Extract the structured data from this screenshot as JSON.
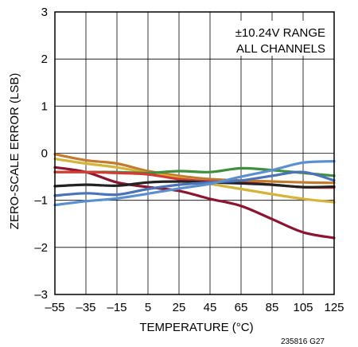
{
  "chart_data": {
    "type": "line",
    "title": "",
    "xlabel": "TEMPERATURE (°C)",
    "ylabel": "ZERO-SCALE ERROR (LSB)",
    "xlim": [
      -55,
      125
    ],
    "ylim": [
      -3,
      3
    ],
    "x_ticks": [
      -55,
      -35,
      -15,
      5,
      25,
      45,
      65,
      85,
      105,
      125
    ],
    "x_tick_labels": [
      "–55",
      "–35",
      "–15",
      "5",
      "25",
      "45",
      "65",
      "85",
      "105",
      "125"
    ],
    "y_ticks": [
      -3,
      -2,
      -1,
      0,
      1,
      2,
      3
    ],
    "y_tick_labels": [
      "–3",
      "–2",
      "–1",
      "0",
      "1",
      "2",
      "3"
    ],
    "grid": true,
    "annotation": [
      "±10.24V RANGE",
      "ALL CHANNELS"
    ],
    "figure_id": "235816 G27",
    "x": [
      -55,
      -35,
      -15,
      5,
      25,
      45,
      65,
      85,
      105,
      125
    ],
    "series": [
      {
        "color": "#c17a2e",
        "values": [
          -0.02,
          -0.15,
          -0.22,
          -0.38,
          -0.48,
          -0.55,
          -0.58,
          -0.6,
          -0.62,
          -0.63
        ]
      },
      {
        "color": "#d4b43a",
        "values": [
          -0.12,
          -0.22,
          -0.3,
          -0.42,
          -0.52,
          -0.65,
          -0.76,
          -0.87,
          -0.97,
          -1.04
        ]
      },
      {
        "color": "#8b1530",
        "values": [
          -0.3,
          -0.4,
          -0.62,
          -0.72,
          -0.8,
          -0.97,
          -1.12,
          -1.4,
          -1.68,
          -1.8
        ]
      },
      {
        "color": "#3f8f3f",
        "values": [
          -0.4,
          -0.4,
          -0.4,
          -0.42,
          -0.38,
          -0.4,
          -0.32,
          -0.36,
          -0.42,
          -0.48
        ]
      },
      {
        "color": "#d63a34",
        "values": [
          -0.4,
          -0.4,
          -0.42,
          -0.45,
          -0.55,
          -0.6,
          -0.62,
          -0.67,
          -0.72,
          -0.73
        ]
      },
      {
        "color": "#222222",
        "values": [
          -0.7,
          -0.67,
          -0.69,
          -0.62,
          -0.6,
          -0.62,
          -0.64,
          -0.67,
          -0.72,
          -0.71
        ]
      },
      {
        "color": "#4b74b8",
        "values": [
          -0.9,
          -0.85,
          -0.88,
          -0.76,
          -0.67,
          -0.62,
          -0.58,
          -0.48,
          -0.4,
          -0.58
        ]
      },
      {
        "color": "#5a8fd0",
        "values": [
          -1.1,
          -1.02,
          -0.96,
          -0.86,
          -0.75,
          -0.65,
          -0.5,
          -0.36,
          -0.2,
          -0.17
        ]
      }
    ]
  }
}
